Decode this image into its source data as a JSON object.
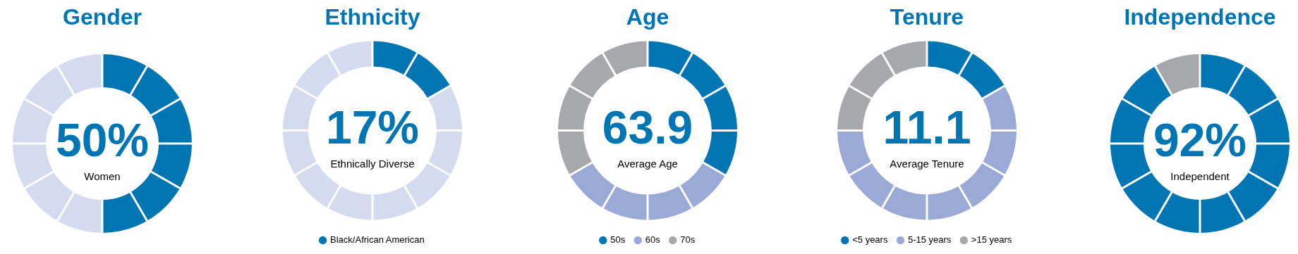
{
  "chart_data": [
    {
      "type": "donut",
      "title": "Gender",
      "categories": [
        null,
        null
      ],
      "values": [
        50,
        50
      ],
      "colors": [
        "#0075b4",
        "#d5dbee"
      ],
      "annotations": [
        "50%",
        "Women"
      ],
      "legend": false
    },
    {
      "type": "donut",
      "title": "Ethnicity",
      "categories": [
        "Black/African American",
        null
      ],
      "values": [
        16.7,
        83.3
      ],
      "colors": [
        "#0075b4",
        "#d5dbee"
      ],
      "annotations": [
        "17%",
        "Ethnically Diverse"
      ],
      "legend": "bottom"
    },
    {
      "type": "donut",
      "title": "Age",
      "categories": [
        "50s",
        "60s",
        "70s"
      ],
      "values": [
        33.3,
        33.3,
        33.4
      ],
      "colors": [
        "#0075b4",
        "#9aa9d6",
        "#a7a8ac"
      ],
      "annotations": [
        "63.9",
        "Average Age"
      ],
      "legend": "bottom"
    },
    {
      "type": "donut",
      "title": "Tenure",
      "categories": [
        "<5 years",
        "5-15 years",
        ">15 years"
      ],
      "values": [
        16.7,
        58.3,
        25
      ],
      "colors": [
        "#0075b4",
        "#9aa9d6",
        "#a7a8ac"
      ],
      "annotations": [
        "11.1",
        "Average Tenure"
      ],
      "legend": "bottom"
    },
    {
      "type": "donut",
      "title": "Independence",
      "categories": [
        null,
        null
      ],
      "values": [
        91.7,
        8.3
      ],
      "colors": [
        "#0075b4",
        "#a7a8ac"
      ],
      "annotations": [
        "92%",
        "Independent"
      ],
      "legend": false
    }
  ]
}
